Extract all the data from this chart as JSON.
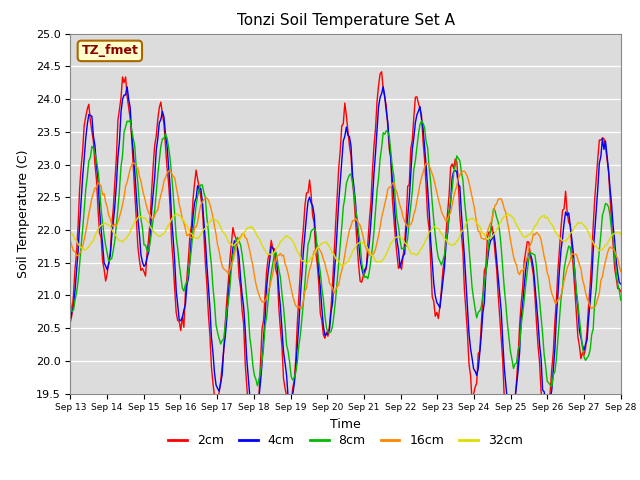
{
  "title": "Tonzi Soil Temperature Set A",
  "xlabel": "Time",
  "ylabel": "Soil Temperature (C)",
  "ylim": [
    19.5,
    25.0
  ],
  "label_box_text": "TZ_fmet",
  "bg_color": "#dcdcdc",
  "line_colors": {
    "2cm": "#ff0000",
    "4cm": "#0000ff",
    "8cm": "#00bb00",
    "16cm": "#ff8800",
    "32cm": "#dddd00"
  },
  "x_tick_labels": [
    "Sep 13",
    "Sep 14",
    "Sep 15",
    "Sep 16",
    "Sep 17",
    "Sep 18",
    "Sep 19",
    "Sep 20",
    "Sep 21",
    "Sep 22",
    "Sep 23",
    "Sep 24",
    "Sep 25",
    "Sep 26",
    "Sep 27",
    "Sep 28"
  ],
  "n_points": 360
}
